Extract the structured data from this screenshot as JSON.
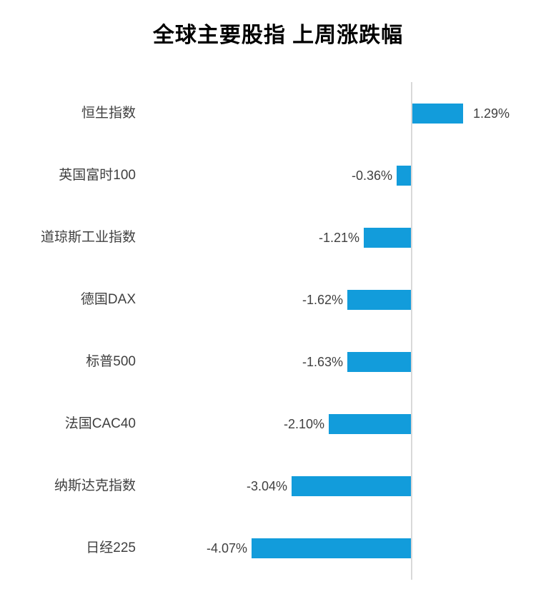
{
  "title": "全球主要股指 上周涨跌幅",
  "colors": {
    "background": "#FFFFFF",
    "bar": "#129CDB",
    "axis_line": "#D9D9D9",
    "label_text": "#404040",
    "title_text": "#000000"
  },
  "chart_data": {
    "type": "bar",
    "orientation": "horizontal",
    "title": "全球主要股指 上周涨跌幅",
    "categories": [
      "恒生指数",
      "英国富时100",
      "道琼斯工业指数",
      "德国DAX",
      "标普500",
      "法国CAC40",
      "纳斯达克指数",
      "日经225"
    ],
    "values": [
      1.29,
      -0.36,
      -1.21,
      -1.62,
      -1.63,
      -2.1,
      -3.04,
      -4.07
    ],
    "value_labels": [
      "1.29%",
      "-0.36%",
      "-1.21%",
      "-1.62%",
      "-1.63%",
      "-2.10%",
      "-3.04%",
      "-4.07%"
    ],
    "unit": "%",
    "xlim": [
      -4.5,
      1.5
    ],
    "grid": false,
    "legend": null,
    "baseline_axis": "vertical-zero-line"
  }
}
